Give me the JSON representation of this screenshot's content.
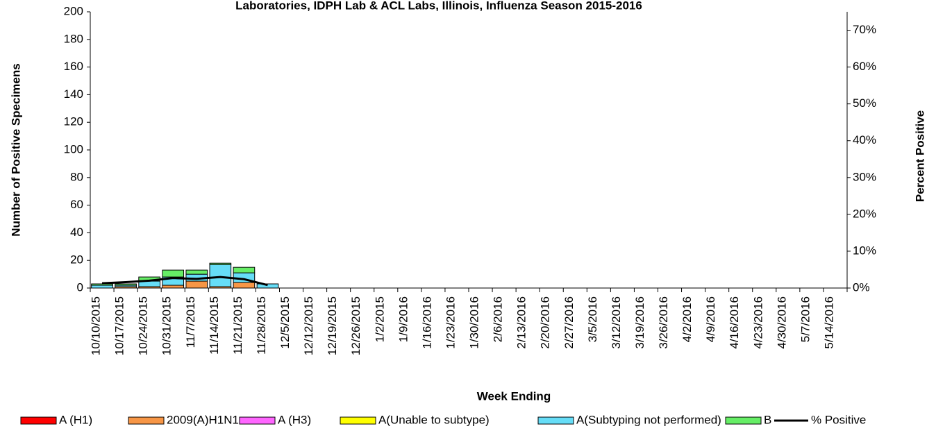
{
  "chart_data": {
    "type": "bar",
    "stacked": true,
    "title": "Laboratories, IDPH Lab & ACL Labs, Illinois, Influenza Season 2015-2016",
    "x_label": "Week Ending",
    "y_label": "Number of  Positive Specimens",
    "y2_label": "Percent Positive",
    "categories": [
      "10/10/2015",
      "10/17/2015",
      "10/24/2015",
      "10/31/2015",
      "11/7/2015",
      "11/14/2015",
      "11/21/2015",
      "11/28/2015",
      "12/5/2015",
      "12/12/2015",
      "12/19/2015",
      "12/26/2015",
      "1/2/2015",
      "1/9/2016",
      "1/16/2016",
      "1/23/2016",
      "1/30/2016",
      "2/6/2016",
      "2/13/2016",
      "2/20/2016",
      "2/27/2016",
      "3/5/2016",
      "3/12/2016",
      "3/19/2016",
      "3/26/2016",
      "4/2/2016",
      "4/9/2016",
      "4/16/2016",
      "4/23/2016",
      "4/30/2016",
      "5/7/2016",
      "5/14/2016"
    ],
    "series": [
      {
        "name": "A (H1)",
        "color": "#ff0000",
        "values": [
          0,
          0,
          0,
          0,
          0,
          0,
          0,
          0,
          0,
          0,
          0,
          0,
          0,
          0,
          0,
          0,
          0,
          0,
          0,
          0,
          0,
          0,
          0,
          0,
          0,
          0,
          0,
          0,
          0,
          0,
          0,
          0
        ]
      },
      {
        "name": "2009(A)H1N1",
        "color": "#f79646",
        "values": [
          0,
          1,
          1,
          2,
          5,
          1,
          4,
          0,
          0,
          0,
          0,
          0,
          0,
          0,
          0,
          0,
          0,
          0,
          0,
          0,
          0,
          0,
          0,
          0,
          0,
          0,
          0,
          0,
          0,
          0,
          0,
          0
        ]
      },
      {
        "name": "A (H3)",
        "color": "#ff66ff",
        "values": [
          0,
          0,
          0,
          0,
          0,
          0,
          0,
          0,
          0,
          0,
          0,
          0,
          0,
          0,
          0,
          0,
          0,
          0,
          0,
          0,
          0,
          0,
          0,
          0,
          0,
          0,
          0,
          0,
          0,
          0,
          0,
          0
        ]
      },
      {
        "name": "A(Unable to subtype)",
        "color": "#ffff00",
        "values": [
          0,
          0,
          0,
          0,
          0,
          0,
          0,
          0,
          0,
          0,
          0,
          0,
          0,
          0,
          0,
          0,
          0,
          0,
          0,
          0,
          0,
          0,
          0,
          0,
          0,
          0,
          0,
          0,
          0,
          0,
          0,
          0
        ]
      },
      {
        "name": "A(Subtyping not performed)",
        "color": "#66ddf7",
        "values": [
          2,
          1,
          4,
          6,
          5,
          16,
          7,
          3,
          0,
          0,
          0,
          0,
          0,
          0,
          0,
          0,
          0,
          0,
          0,
          0,
          0,
          0,
          0,
          0,
          0,
          0,
          0,
          0,
          0,
          0,
          0,
          0
        ]
      },
      {
        "name": "B",
        "color": "#66ee66",
        "values": [
          1,
          1,
          3,
          5,
          3,
          1,
          4,
          0,
          0,
          0,
          0,
          0,
          0,
          0,
          0,
          0,
          0,
          0,
          0,
          0,
          0,
          0,
          0,
          0,
          0,
          0,
          0,
          0,
          0,
          0,
          0,
          0
        ]
      },
      {
        "name": "% Positive",
        "type": "line",
        "axis": "y2",
        "color": "#000000",
        "values": [
          1.3,
          1.6,
          2.0,
          2.7,
          2.5,
          3.0,
          2.4,
          0.8,
          null,
          null,
          null,
          null,
          null,
          null,
          null,
          null,
          null,
          null,
          null,
          null,
          null,
          null,
          null,
          null,
          null,
          null,
          null,
          null,
          null,
          null,
          null,
          null
        ]
      }
    ],
    "ylim": [
      0,
      200
    ],
    "yticks": [
      0,
      20,
      40,
      60,
      80,
      100,
      120,
      140,
      160,
      180,
      200
    ],
    "y2lim": [
      0,
      75
    ],
    "y2ticks": [
      {
        "value": 0,
        "label": "0%"
      },
      {
        "value": 10,
        "label": "10%"
      },
      {
        "value": 20,
        "label": "20%"
      },
      {
        "value": 30,
        "label": "30%"
      },
      {
        "value": 40,
        "label": "40%"
      },
      {
        "value": 50,
        "label": "50%"
      },
      {
        "value": 60,
        "label": "60%"
      },
      {
        "value": 70,
        "label": "70%"
      }
    ],
    "legend": "bottom"
  }
}
